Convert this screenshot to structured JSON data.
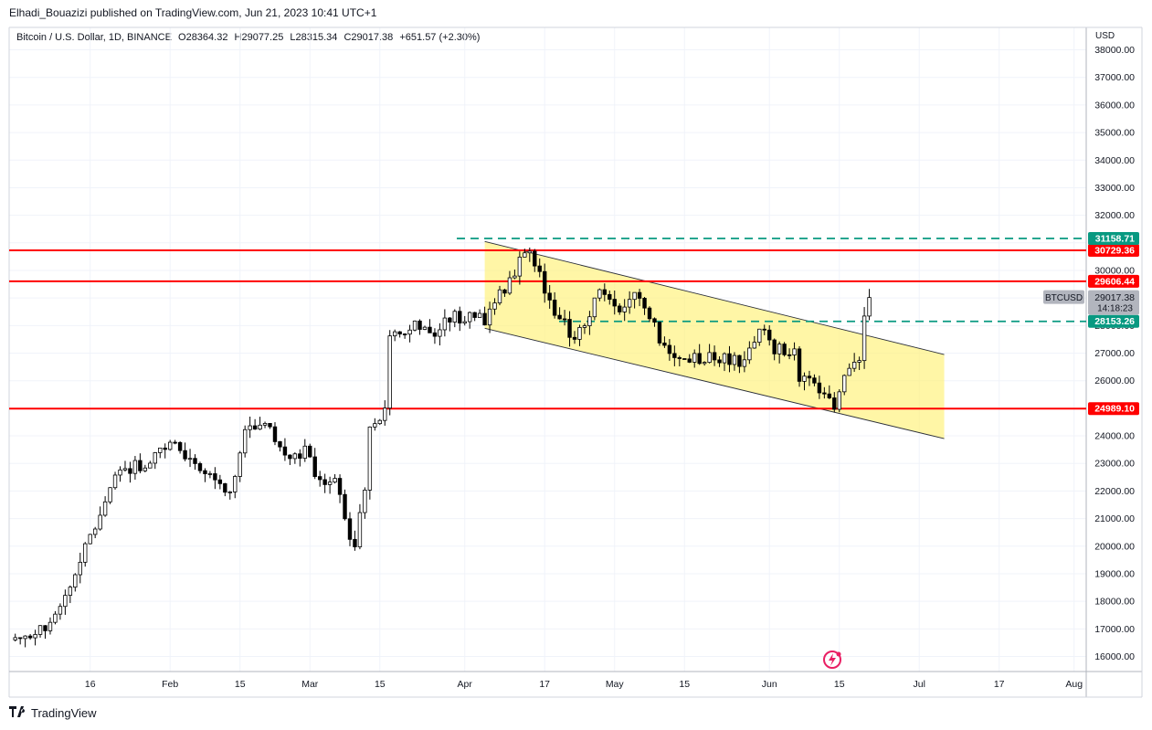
{
  "header": {
    "publisher_line": "Elhadi_Bouazizi published on TradingView.com, Jun 21, 2023 10:41 UTC+1"
  },
  "legend": {
    "symbol": "Bitcoin / U.S. Dollar, 1D, BINANCE",
    "open": "O28364.32",
    "high": "H29077.25",
    "low": "L28315.34",
    "close": "C29017.38",
    "change": "+651.57 (+2.30%)"
  },
  "currency": "USD",
  "footer": {
    "brand": "TradingView"
  },
  "colors": {
    "up_candle": "#ffffff",
    "down_candle": "#000000",
    "support_resistance": "#ff0000",
    "dashed_level": "#089981",
    "channel_fill": "#fff176",
    "last_price_tag": "#b2b5be"
  },
  "chart_data": {
    "type": "candlestick",
    "title": "Bitcoin / U.S. Dollar, 1D, BINANCE",
    "x_tick_labels": [
      "16",
      "Feb",
      "15",
      "Mar",
      "15",
      "Apr",
      "17",
      "May",
      "15",
      "Jun",
      "15",
      "Jul",
      "17",
      "Aug"
    ],
    "y_tick_labels": [
      "16000.00",
      "17000.00",
      "18000.00",
      "19000.00",
      "20000.00",
      "21000.00",
      "22000.00",
      "23000.00",
      "24000.00",
      "25000.00",
      "26000.00",
      "27000.00",
      "28000.00",
      "29000.00",
      "30000.00",
      "31000.00",
      "32000.00",
      "33000.00",
      "34000.00",
      "35000.00",
      "36000.00",
      "37000.00",
      "38000.00"
    ],
    "ylim": [
      15500,
      38300
    ],
    "grid": true,
    "horizontal_levels": [
      {
        "price": 30729.36,
        "label": "30729.36",
        "style": "solid-red"
      },
      {
        "price": 29606.44,
        "label": "29606.44",
        "style": "solid-red"
      },
      {
        "price": 24989.1,
        "label": "24989.10",
        "style": "solid-red"
      },
      {
        "price": 31158.71,
        "label": "31158.71",
        "style": "dashed-green"
      },
      {
        "price": 28153.26,
        "label": "28153.26",
        "style": "dashed-green"
      }
    ],
    "last_price": {
      "symbol": "BTCUSD",
      "price": "29017.38",
      "countdown": "14:18:23"
    },
    "channel": {
      "upper": [
        [
          "2023-04-05",
          31050
        ],
        [
          "2023-07-06",
          26950
        ]
      ],
      "lower": [
        [
          "2023-04-05",
          27900
        ],
        [
          "2023-07-06",
          23900
        ]
      ]
    },
    "close_path": [
      [
        "2023-01-01",
        16600
      ],
      [
        "2023-01-08",
        17100
      ],
      [
        "2023-01-13",
        19000
      ],
      [
        "2023-01-18",
        21100
      ],
      [
        "2023-01-21",
        22700
      ],
      [
        "2023-01-28",
        23000
      ],
      [
        "2023-02-02",
        23800
      ],
      [
        "2023-02-06",
        22900
      ],
      [
        "2023-02-13",
        21800
      ],
      [
        "2023-02-16",
        24200
      ],
      [
        "2023-02-20",
        24500
      ],
      [
        "2023-02-24",
        23200
      ],
      [
        "2023-02-28",
        23500
      ],
      [
        "2023-03-03",
        22300
      ],
      [
        "2023-03-06",
        22400
      ],
      [
        "2023-03-09",
        20300
      ],
      [
        "2023-03-10",
        20100
      ],
      [
        "2023-03-12",
        22100
      ],
      [
        "2023-03-13",
        24100
      ],
      [
        "2023-03-16",
        25000
      ],
      [
        "2023-03-17",
        27400
      ],
      [
        "2023-03-22",
        28200
      ],
      [
        "2023-03-26",
        27500
      ],
      [
        "2023-03-29",
        28300
      ],
      [
        "2023-04-05",
        28200
      ],
      [
        "2023-04-10",
        29700
      ],
      [
        "2023-04-12",
        30300
      ],
      [
        "2023-04-14",
        30500
      ],
      [
        "2023-04-17",
        29400
      ],
      [
        "2023-04-20",
        28200
      ],
      [
        "2023-04-23",
        27600
      ],
      [
        "2023-04-26",
        28300
      ],
      [
        "2023-04-28",
        29500
      ],
      [
        "2023-05-02",
        28600
      ],
      [
        "2023-05-06",
        29100
      ],
      [
        "2023-05-08",
        28400
      ],
      [
        "2023-05-10",
        27600
      ],
      [
        "2023-05-13",
        26900
      ],
      [
        "2023-05-20",
        26800
      ],
      [
        "2023-05-27",
        26700
      ],
      [
        "2023-05-30",
        27800
      ],
      [
        "2023-06-02",
        27200
      ],
      [
        "2023-06-06",
        27000
      ],
      [
        "2023-06-07",
        26200
      ],
      [
        "2023-06-10",
        25800
      ],
      [
        "2023-06-14",
        25200
      ],
      [
        "2023-06-15",
        25600
      ],
      [
        "2023-06-17",
        26300
      ],
      [
        "2023-06-19",
        26800
      ],
      [
        "2023-06-20",
        28300
      ],
      [
        "2023-06-21",
        29017
      ]
    ]
  }
}
